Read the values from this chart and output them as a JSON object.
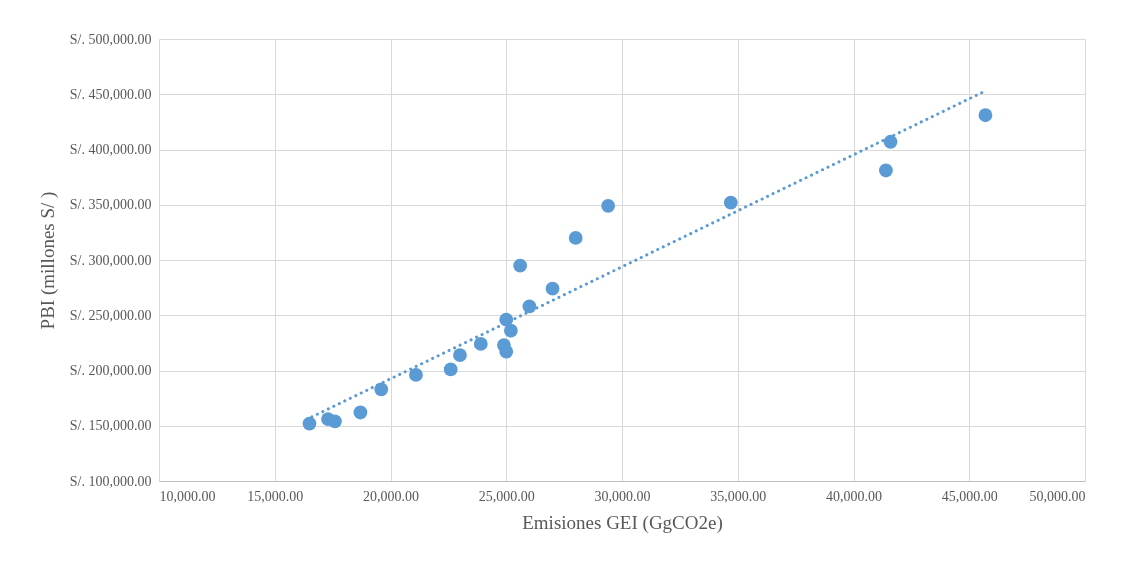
{
  "chart_data": {
    "type": "scatter",
    "xlabel": "Emisiones GEI (GgCO2e)",
    "ylabel": "PBI (millones S/ )",
    "xlim": [
      10000,
      50000
    ],
    "ylim": [
      100000,
      500000
    ],
    "xticks": [
      {
        "value": 10000,
        "label": "10,000.00"
      },
      {
        "value": 15000,
        "label": "15,000.00"
      },
      {
        "value": 20000,
        "label": "20,000.00"
      },
      {
        "value": 25000,
        "label": "25,000.00"
      },
      {
        "value": 30000,
        "label": "30,000.00"
      },
      {
        "value": 35000,
        "label": "35,000.00"
      },
      {
        "value": 40000,
        "label": "40,000.00"
      },
      {
        "value": 45000,
        "label": "45,000.00"
      },
      {
        "value": 50000,
        "label": "50,000.00"
      }
    ],
    "yticks": [
      {
        "value": 100000,
        "label": "S/. 100,000.00"
      },
      {
        "value": 150000,
        "label": "S/. 150,000.00"
      },
      {
        "value": 200000,
        "label": "S/. 200,000.00"
      },
      {
        "value": 250000,
        "label": "S/. 250,000.00"
      },
      {
        "value": 300000,
        "label": "S/. 300,000.00"
      },
      {
        "value": 350000,
        "label": "S/. 350,000.00"
      },
      {
        "value": 400000,
        "label": "S/. 400,000.00"
      },
      {
        "value": 450000,
        "label": "S/. 450,000.00"
      },
      {
        "value": 500000,
        "label": "S/. 500,000.00"
      }
    ],
    "grid": true,
    "series": [
      {
        "marker": "circle",
        "color": "#5b9bd5",
        "x": [
          16500,
          17300,
          17600,
          18700,
          19600,
          21100,
          22600,
          23000,
          23900,
          24900,
          25000,
          25000,
          25200,
          25600,
          26000,
          27000,
          28000,
          29400,
          34700,
          41400,
          41600,
          45700
        ],
        "values": [
          152000,
          156000,
          154000,
          162000,
          183000,
          196000,
          201000,
          214000,
          224000,
          223000,
          217000,
          246000,
          236000,
          295000,
          258000,
          274000,
          320000,
          349000,
          352000,
          381000,
          407000,
          431000
        ]
      },
      {
        "type": "line",
        "line_style": "dotted",
        "color": "#5b9bd5",
        "x": [
          16600,
          45600
        ],
        "values": [
          158000,
          452000
        ]
      }
    ]
  }
}
